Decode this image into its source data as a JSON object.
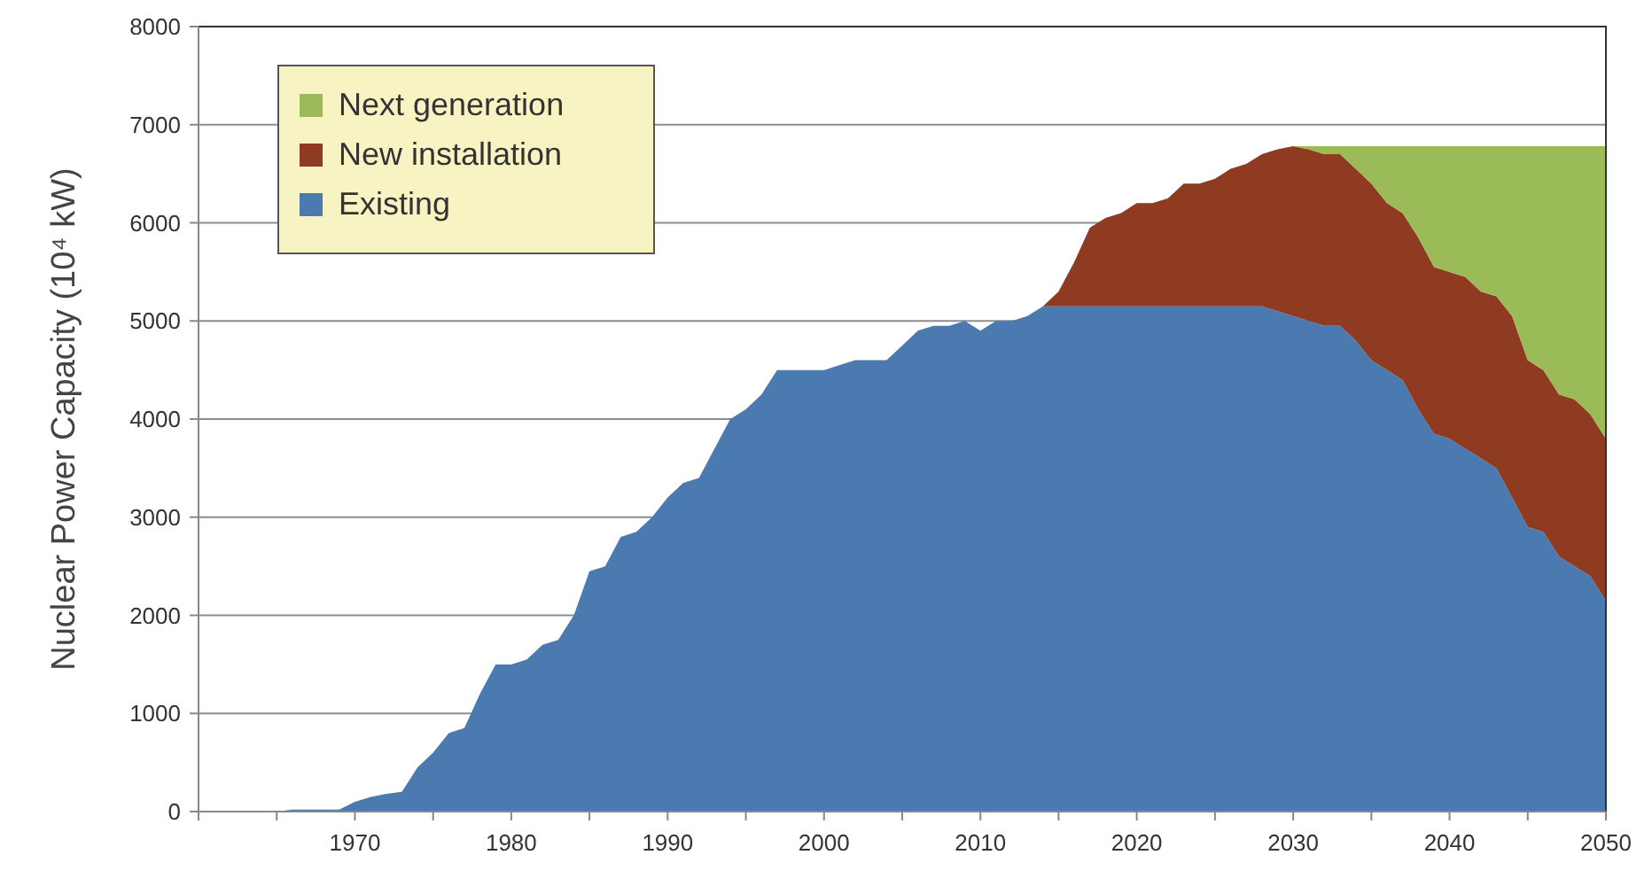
{
  "chart_data": {
    "type": "area",
    "stacked": true,
    "ylabel": "Nuclear Power Capacity (10⁴ kW)",
    "x": [
      1965,
      1966,
      1967,
      1968,
      1969,
      1970,
      1971,
      1972,
      1973,
      1974,
      1975,
      1976,
      1977,
      1978,
      1979,
      1980,
      1981,
      1982,
      1983,
      1984,
      1985,
      1986,
      1987,
      1988,
      1989,
      1990,
      1991,
      1992,
      1993,
      1994,
      1995,
      1996,
      1997,
      1998,
      1999,
      2000,
      2001,
      2002,
      2003,
      2004,
      2005,
      2006,
      2007,
      2008,
      2009,
      2010,
      2011,
      2012,
      2013,
      2014,
      2015,
      2016,
      2017,
      2018,
      2019,
      2020,
      2021,
      2022,
      2023,
      2024,
      2025,
      2026,
      2027,
      2028,
      2029,
      2030,
      2031,
      2032,
      2033,
      2034,
      2035,
      2036,
      2037,
      2038,
      2039,
      2040,
      2041,
      2042,
      2043,
      2044,
      2045,
      2046,
      2047,
      2048,
      2049,
      2050
    ],
    "series": [
      {
        "name": "Existing",
        "color": "#4a7ab0",
        "values": [
          0,
          20,
          20,
          20,
          20,
          100,
          150,
          180,
          200,
          450,
          600,
          800,
          850,
          1200,
          1500,
          1500,
          1550,
          1700,
          1750,
          2000,
          2450,
          2500,
          2800,
          2850,
          3000,
          3200,
          3350,
          3400,
          3700,
          4000,
          4100,
          4250,
          4500,
          4500,
          4500,
          4500,
          4550,
          4600,
          4600,
          4600,
          4750,
          4900,
          4950,
          4950,
          5000,
          4900,
          5000,
          5000,
          5050,
          5150,
          5150,
          5150,
          5150,
          5150,
          5150,
          5150,
          5150,
          5150,
          5150,
          5150,
          5150,
          5150,
          5150,
          5150,
          5100,
          5050,
          5000,
          4950,
          4950,
          4800,
          4600,
          4500,
          4400,
          4100,
          3850,
          3800,
          3700,
          3600,
          3500,
          3200,
          2900,
          2850,
          2600,
          2500,
          2400,
          2150
        ]
      },
      {
        "name": "New installation",
        "color": "#8e3b22",
        "values": [
          null,
          null,
          null,
          null,
          null,
          null,
          null,
          null,
          null,
          null,
          null,
          null,
          null,
          null,
          null,
          null,
          null,
          null,
          null,
          null,
          null,
          null,
          null,
          null,
          null,
          null,
          null,
          null,
          null,
          null,
          null,
          null,
          null,
          null,
          null,
          null,
          null,
          null,
          null,
          null,
          null,
          null,
          null,
          null,
          null,
          null,
          null,
          null,
          null,
          0,
          150,
          450,
          800,
          900,
          950,
          1050,
          1050,
          1100,
          1250,
          1250,
          1300,
          1400,
          1450,
          1550,
          1650,
          1730,
          1750,
          1750,
          1750,
          1750,
          1800,
          1700,
          1700,
          1750,
          1700,
          1700,
          1750,
          1700,
          1750,
          1850,
          1700,
          1650,
          1650,
          1700,
          1650,
          1650
        ]
      },
      {
        "name": "Next generation",
        "color": "#9bbb59",
        "values": [
          null,
          null,
          null,
          null,
          null,
          null,
          null,
          null,
          null,
          null,
          null,
          null,
          null,
          null,
          null,
          null,
          null,
          null,
          null,
          null,
          null,
          null,
          null,
          null,
          null,
          null,
          null,
          null,
          null,
          null,
          null,
          null,
          null,
          null,
          null,
          null,
          null,
          null,
          null,
          null,
          null,
          null,
          null,
          null,
          null,
          null,
          null,
          null,
          null,
          null,
          null,
          null,
          null,
          null,
          null,
          null,
          null,
          null,
          null,
          null,
          null,
          null,
          null,
          null,
          null,
          0,
          30,
          80,
          80,
          230,
          380,
          580,
          680,
          930,
          1230,
          1280,
          1330,
          1480,
          1530,
          1730,
          2180,
          2280,
          2530,
          2580,
          2730,
          2980
        ]
      }
    ],
    "xlim": [
      1960,
      2050
    ],
    "xticks": [
      {
        "value": 1960,
        "label": null
      },
      {
        "value": 1965,
        "label": null
      },
      1970,
      {
        "value": 1975,
        "label": null
      },
      1980,
      {
        "value": 1985,
        "label": null
      },
      1990,
      {
        "value": 1995,
        "label": null
      },
      2000,
      {
        "value": 2005,
        "label": null
      },
      2010,
      {
        "value": 2015,
        "label": null
      },
      2020,
      {
        "value": 2025,
        "label": null
      },
      2030,
      {
        "value": 2035,
        "label": null
      },
      2040,
      {
        "value": 2045,
        "label": null
      },
      2050
    ],
    "ylim": [
      0,
      8000
    ],
    "yticks": [
      0,
      1000,
      2000,
      3000,
      4000,
      5000,
      6000,
      7000,
      8000
    ],
    "grid": "y",
    "legend": "top left"
  }
}
